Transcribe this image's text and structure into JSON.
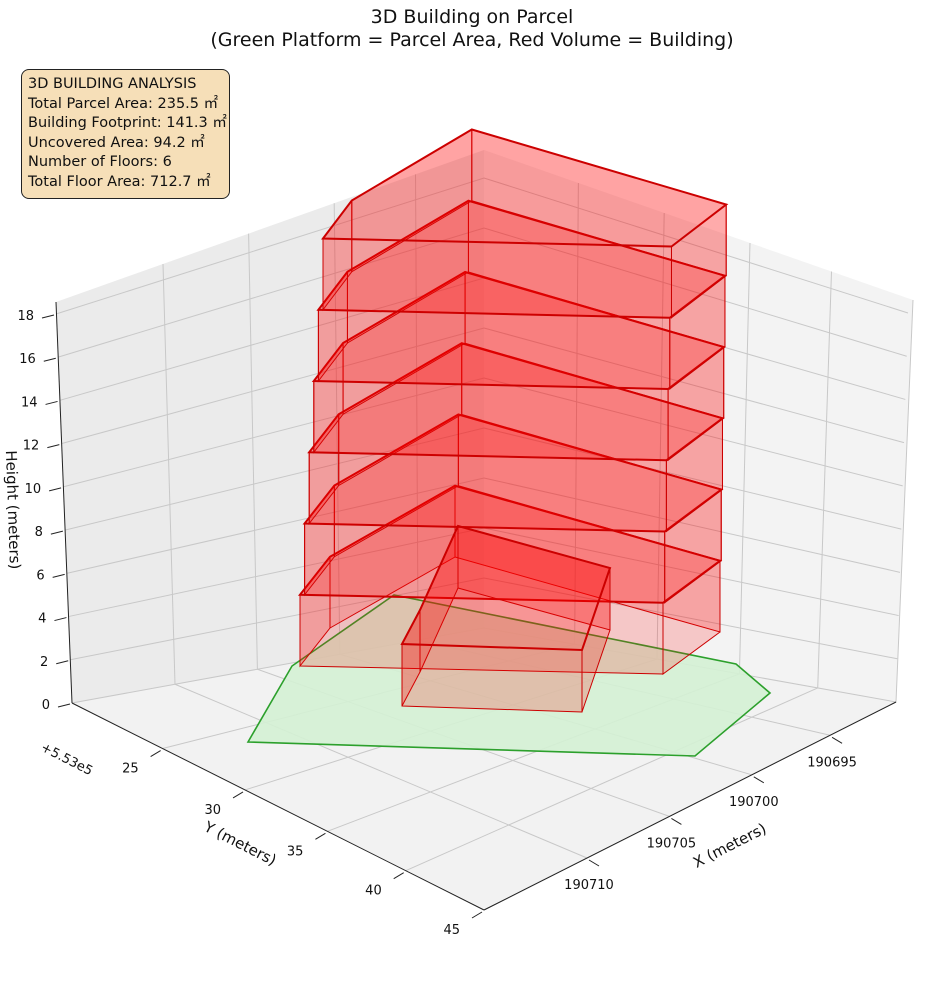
{
  "chart_data": {
    "type": "3d-polyhedra",
    "title_line1": "3D Building on Parcel",
    "title_line2": "(Green Platform = Parcel Area, Red Volume = Building)",
    "xlabel": "X (meters)",
    "ylabel": "Y (meters)",
    "zlabel": "Height (meters)",
    "y_offset_text": "+5.53e5",
    "x_ticks": [
      "190695",
      "190700",
      "190705",
      "190710"
    ],
    "y_ticks": [
      "25",
      "30",
      "35",
      "40",
      "45"
    ],
    "z_ticks": [
      "0",
      "2",
      "4",
      "6",
      "8",
      "10",
      "12",
      "14",
      "16",
      "18"
    ],
    "zlim": [
      0,
      18
    ],
    "grid": true,
    "colors": {
      "parcel_fill": "#d4f1d4",
      "parcel_edge": "#2ca02c",
      "building_fill": "#ff0000",
      "building_edge": "#cc0000",
      "info_box_bg": "#f6dfb8"
    },
    "parcel": {
      "name": "Parcel Area",
      "z": 0
    },
    "building": {
      "name": "Building",
      "floors": 6,
      "floor_height_m": 3
    }
  },
  "info": {
    "heading": "3D BUILDING ANALYSIS",
    "total_parcel_area": "Total Parcel Area: 235.5 ㎡",
    "building_footprint": "Building Footprint: 141.3 ㎡",
    "uncovered_area": "Uncovered Area: 94.2 ㎡",
    "number_of_floors": "Number of Floors: 6",
    "total_floor_area": "Total Floor Area: 712.7 ㎡"
  }
}
